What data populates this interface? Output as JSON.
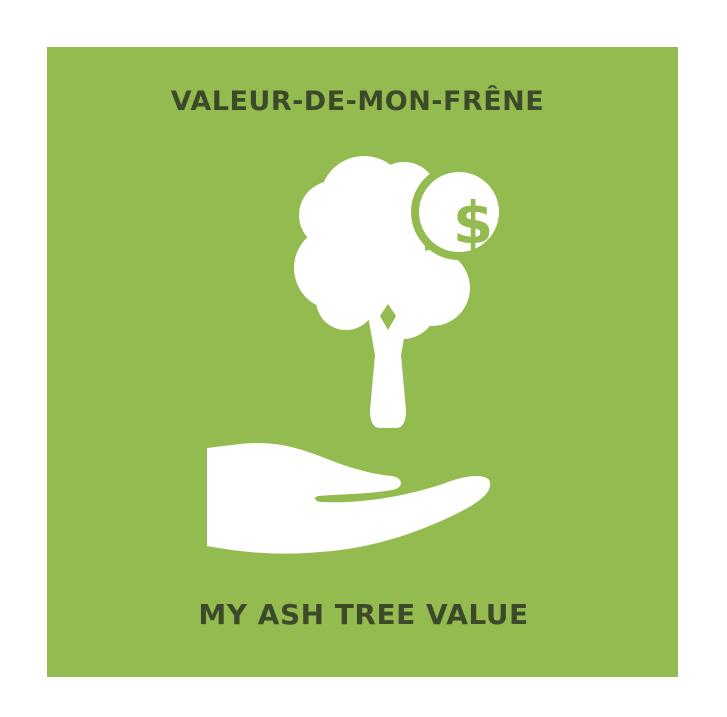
{
  "titles": {
    "top": "VALEUR-DE-MON-FRÊNE",
    "bottom": "MY ASH TREE VALUE"
  },
  "icon": {
    "symbol": "$",
    "names": [
      "tree-icon",
      "dollar-icon",
      "hand-icon"
    ]
  },
  "colors": {
    "background": "#94bb50",
    "text": "#3d4a2a",
    "icon": "#ffffff"
  }
}
